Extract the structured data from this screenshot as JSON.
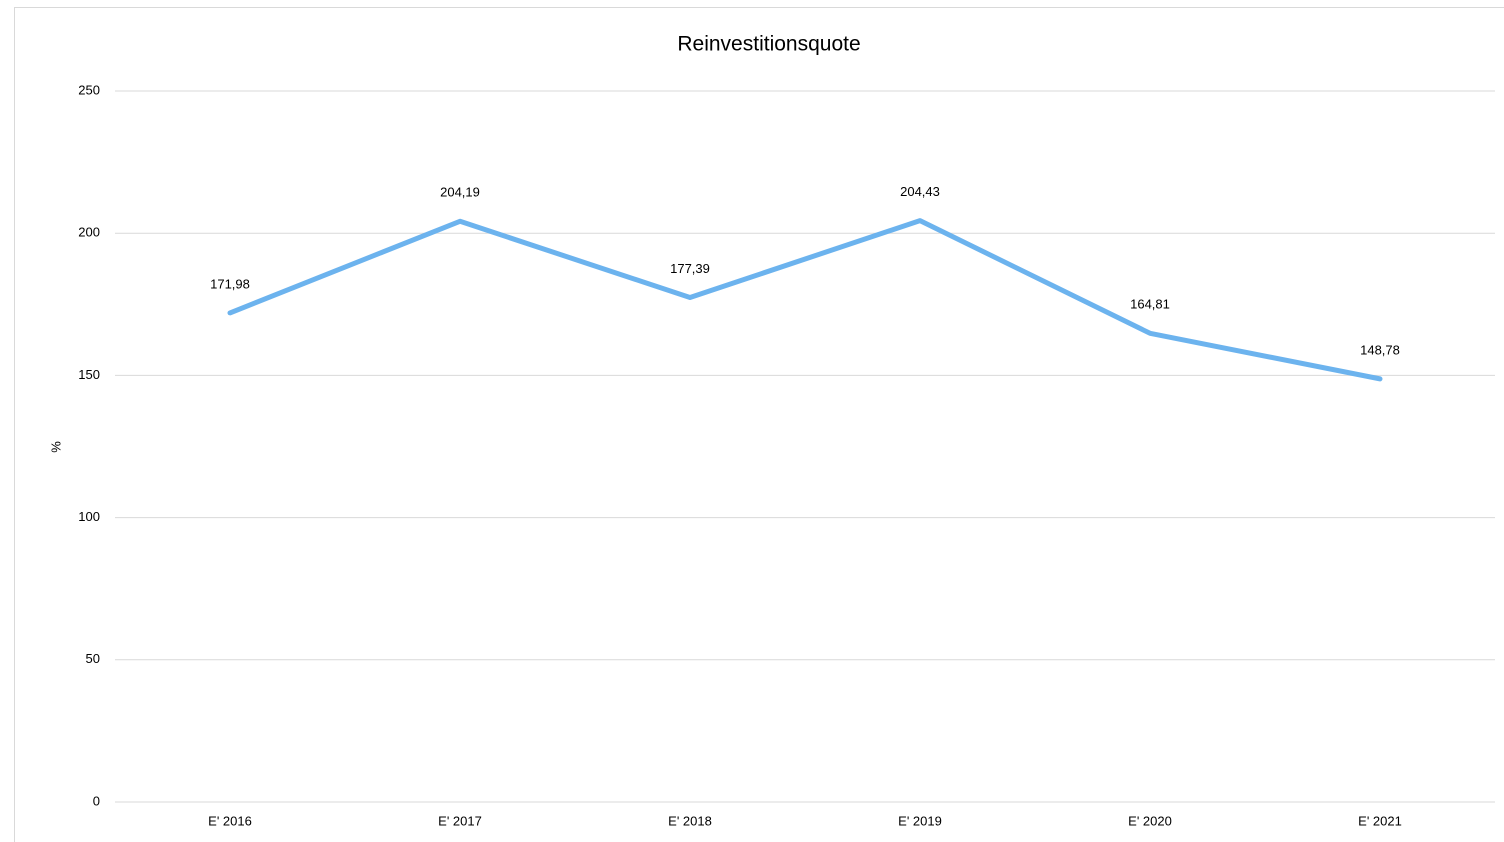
{
  "chart_data": {
    "type": "line",
    "title": "Reinvestitionsquote",
    "y_label": "%",
    "categories": [
      "E' 2016",
      "E' 2017",
      "E' 2018",
      "E' 2019",
      "E' 2020",
      "E' 2021"
    ],
    "series": [
      {
        "name": "Reinvestitionsquote",
        "color": "#6cb3ee",
        "values": [
          171.98,
          204.19,
          177.39,
          204.43,
          164.81,
          148.78
        ],
        "value_labels": [
          "171,98",
          "204,19",
          "177,39",
          "204,43",
          "164,81",
          "148,78"
        ]
      }
    ],
    "ylim": [
      0,
      250
    ],
    "yticks": [
      0,
      50,
      100,
      150,
      200,
      250
    ],
    "grid": true
  }
}
